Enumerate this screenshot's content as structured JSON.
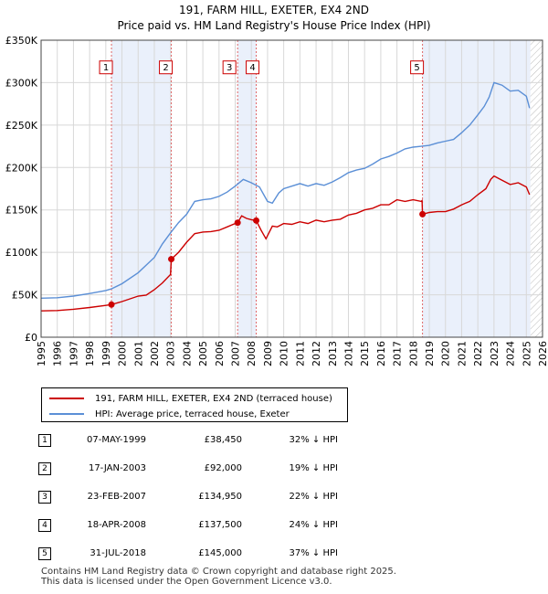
{
  "chart_data": {
    "type": "line",
    "title": "191, FARM HILL, EXETER, EX4 2ND",
    "subtitle": "Price paid vs. HM Land Registry's House Price Index (HPI)",
    "xlim": [
      1995,
      2026
    ],
    "ylim": [
      0,
      350000
    ],
    "x_ticks": [
      1995,
      1996,
      1997,
      1998,
      1999,
      2000,
      2001,
      2002,
      2003,
      2004,
      2005,
      2006,
      2007,
      2008,
      2009,
      2010,
      2011,
      2012,
      2013,
      2014,
      2015,
      2016,
      2017,
      2018,
      2019,
      2020,
      2021,
      2022,
      2023,
      2024,
      2025,
      2026
    ],
    "y_ticks": [
      {
        "value": 0,
        "label": "£0"
      },
      {
        "value": 50000,
        "label": "£50K"
      },
      {
        "value": 100000,
        "label": "£100K"
      },
      {
        "value": 150000,
        "label": "£150K"
      },
      {
        "value": 200000,
        "label": "£200K"
      },
      {
        "value": 250000,
        "label": "£250K"
      },
      {
        "value": 300000,
        "label": "£300K"
      },
      {
        "value": 350000,
        "label": "£350K"
      }
    ],
    "grid": true,
    "future_hatch_from": 2025.25,
    "shaded_regions": [
      [
        1999.35,
        2003.05
      ],
      [
        2007.15,
        2008.3
      ],
      [
        2018.58,
        2025.25
      ]
    ],
    "series": [
      {
        "name": "191, FARM HILL, EXETER, EX4 2ND (terraced house)",
        "color": "#cc0000",
        "x": [
          1995.0,
          1996.0,
          1997.0,
          1998.0,
          1999.0,
          1999.35,
          2000.0,
          2001.0,
          2001.5,
          2002.0,
          2002.5,
          2003.0,
          2003.05,
          2003.5,
          2004.0,
          2004.5,
          2005.0,
          2005.5,
          2006.0,
          2006.5,
          2007.0,
          2007.15,
          2007.4,
          2007.7,
          2008.0,
          2008.3,
          2008.6,
          2008.9,
          2009.3,
          2009.6,
          2010.0,
          2010.5,
          2011.0,
          2011.5,
          2012.0,
          2012.5,
          2013.0,
          2013.5,
          2014.0,
          2014.5,
          2015.0,
          2015.5,
          2016.0,
          2016.5,
          2017.0,
          2017.5,
          2018.0,
          2018.5,
          2018.55,
          2018.58,
          2018.8,
          2019.0,
          2019.5,
          2020.0,
          2020.5,
          2021.0,
          2021.5,
          2022.0,
          2022.5,
          2022.8,
          2023.0,
          2023.5,
          2024.0,
          2024.5,
          2025.0,
          2025.2
        ],
        "y": [
          31000,
          31500,
          33000,
          35000,
          37500,
          38450,
          42000,
          48500,
          49500,
          56000,
          64000,
          74000,
          92000,
          100000,
          112000,
          122000,
          124000,
          124500,
          126000,
          130000,
          134000,
          134950,
          143000,
          140000,
          138500,
          137500,
          126000,
          116000,
          131000,
          130000,
          134000,
          133000,
          136000,
          134000,
          138000,
          136000,
          138000,
          139000,
          144000,
          146000,
          150000,
          152000,
          156000,
          156000,
          162000,
          160000,
          162000,
          160000,
          161000,
          145000,
          146000,
          147000,
          148000,
          148000,
          151000,
          156000,
          160000,
          168000,
          175000,
          186000,
          190000,
          185000,
          180000,
          182000,
          177000,
          168000
        ]
      },
      {
        "name": "HPI: Average price, terraced house, Exeter",
        "color": "#5b8fd6",
        "x": [
          1995.0,
          1996.0,
          1997.0,
          1998.0,
          1999.0,
          1999.35,
          2000.0,
          2001.0,
          2002.0,
          2002.5,
          2003.0,
          2003.5,
          2004.0,
          2004.5,
          2005.0,
          2005.5,
          2006.0,
          2006.5,
          2007.0,
          2007.5,
          2008.0,
          2008.5,
          2009.0,
          2009.3,
          2009.7,
          2010.0,
          2010.5,
          2011.0,
          2011.5,
          2012.0,
          2012.5,
          2013.0,
          2013.5,
          2014.0,
          2014.5,
          2015.0,
          2015.5,
          2016.0,
          2016.5,
          2017.0,
          2017.5,
          2018.0,
          2018.5,
          2019.0,
          2019.5,
          2020.0,
          2020.5,
          2021.0,
          2021.5,
          2022.0,
          2022.4,
          2022.7,
          2023.0,
          2023.5,
          2024.0,
          2024.5,
          2025.0,
          2025.2
        ],
        "y": [
          46000,
          46500,
          48500,
          51500,
          55000,
          57000,
          63000,
          76000,
          94000,
          110000,
          123000,
          135000,
          145000,
          160000,
          162000,
          163000,
          166000,
          171000,
          178000,
          186000,
          182000,
          177000,
          160000,
          158000,
          170000,
          175000,
          178000,
          181000,
          178000,
          181000,
          179000,
          183000,
          188000,
          194000,
          197000,
          199000,
          204000,
          210000,
          213000,
          217000,
          222000,
          224000,
          225000,
          226000,
          229000,
          231000,
          233000,
          241000,
          250000,
          262000,
          272000,
          283000,
          300000,
          297000,
          290000,
          291000,
          284000,
          270000
        ]
      }
    ],
    "sales": [
      {
        "label": "1",
        "x": 1999.35,
        "y": 38450,
        "marker_y": 38450
      },
      {
        "label": "2",
        "x": 2003.05,
        "y": 92000,
        "marker_y": 92000
      },
      {
        "label": "3",
        "x": 2007.15,
        "y": 134950,
        "marker_y": 134950
      },
      {
        "label": "4",
        "x": 2008.3,
        "y": 137500,
        "marker_y": 137500
      },
      {
        "label": "5",
        "x": 2018.58,
        "y": 145000,
        "marker_y": 145000
      }
    ],
    "annotation_y_value": 318000
  },
  "legend": {
    "property_label": "191, FARM HILL, EXETER, EX4 2ND (terraced house)",
    "hpi_label": "HPI: Average price, terraced house, Exeter",
    "property_color": "#cc0000",
    "hpi_color": "#5b8fd6"
  },
  "sales_table": [
    {
      "num": "1",
      "date": "07-MAY-1999",
      "price": "£38,450",
      "hpi": "32% ↓ HPI"
    },
    {
      "num": "2",
      "date": "17-JAN-2003",
      "price": "£92,000",
      "hpi": "19% ↓ HPI"
    },
    {
      "num": "3",
      "date": "23-FEB-2007",
      "price": "£134,950",
      "hpi": "22% ↓ HPI"
    },
    {
      "num": "4",
      "date": "18-APR-2008",
      "price": "£137,500",
      "hpi": "24% ↓ HPI"
    },
    {
      "num": "5",
      "date": "31-JUL-2018",
      "price": "£145,000",
      "hpi": "37% ↓ HPI"
    }
  ],
  "footer": {
    "line1": "Contains HM Land Registry data © Crown copyright and database right 2025.",
    "line2": "This data is licensed under the Open Government Licence v3.0."
  }
}
